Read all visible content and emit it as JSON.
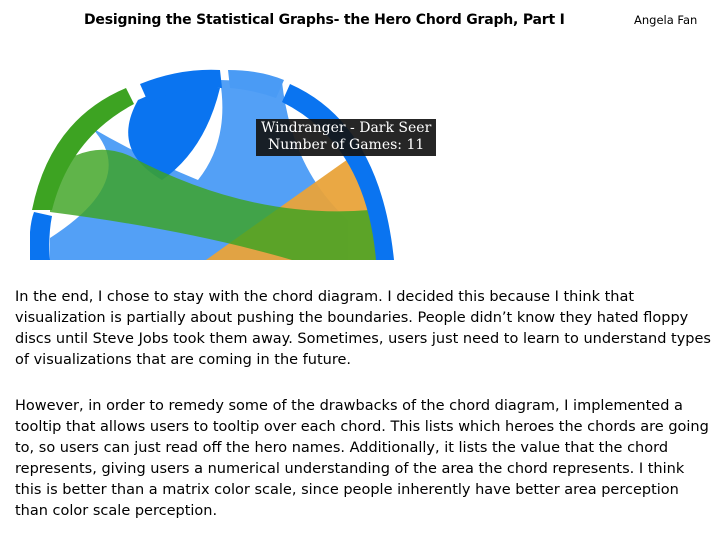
{
  "header": {
    "title": "Designing the Statistical Graphs- the Hero Chord Graph, Part I",
    "author": "Angela Fan"
  },
  "tooltip": {
    "line1": "Windranger - Dark Seer",
    "line2": "Number of Games: 11"
  },
  "colors": {
    "blue_dark": "#0a74f0",
    "blue_light": "#4a9bf5",
    "green": "#3da322",
    "green_light": "#5fbf3a",
    "orange": "#e9a33a"
  },
  "paragraphs": [
    "In the end, I chose to stay with the chord diagram. I decided this because I think that visualization is partially about pushing the boundaries. People didn’t know they hated floppy discs until Steve Jobs took them away. Sometimes, users just need to learn to understand types of visualizations that are coming in the future.",
    "However, in order to remedy some of the drawbacks of the chord diagram, I implemented a tooltip that allows users to tooltip over each chord. This lists which heroes the chords are going to, so users can just read off the hero names. Additionally, it lists the value that the chord represents, giving users a numerical understanding of the area the chord represents. I think this is better than a matrix color scale, since people inherently have better area perception than color scale perception."
  ]
}
